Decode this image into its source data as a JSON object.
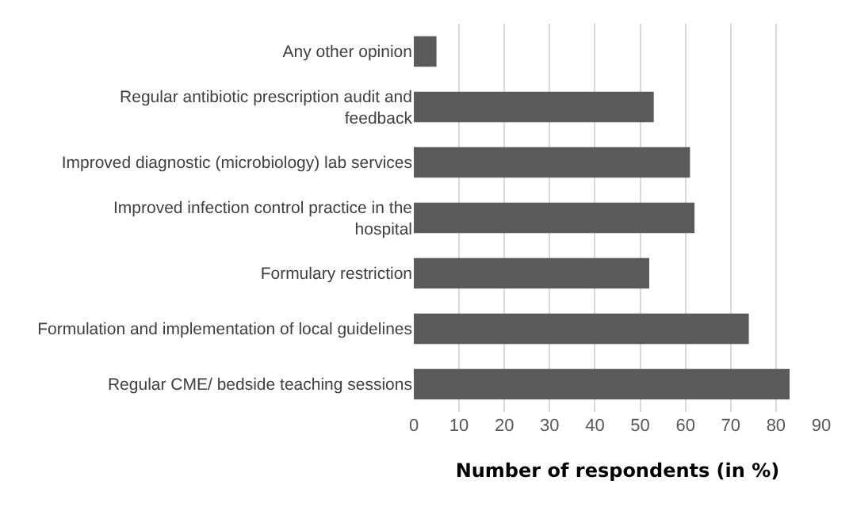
{
  "chart_data": {
    "type": "bar",
    "orientation": "horizontal",
    "xlabel": "Number of respondents (in %)",
    "categories": [
      "Any other opinion",
      "Regular antibiotic prescription audit and feedback",
      "Improved diagnostic (microbiology) lab services",
      "Improved infection control practice in the hospital",
      "Formulary restriction",
      "Formulation and implementation of local guidelines",
      "Regular CME/ bedside teaching sessions"
    ],
    "values": [
      5,
      53,
      61,
      62,
      52,
      74,
      83
    ],
    "color": "#5a5a5a",
    "xlim": [
      0,
      90
    ],
    "xticks": [
      0,
      10,
      20,
      30,
      40,
      50,
      60,
      70,
      80,
      90
    ],
    "grid": "x"
  }
}
